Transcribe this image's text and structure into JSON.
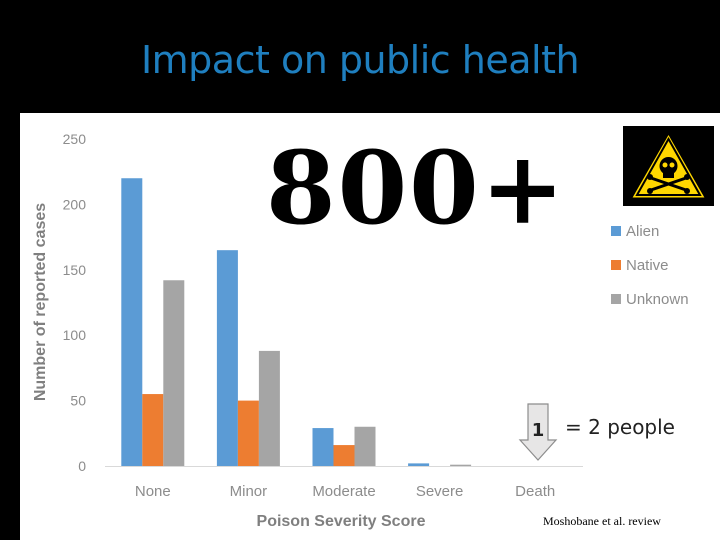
{
  "title": "Impact on public health",
  "headline_number": "800+",
  "icon": "skull-crossbones-warning-icon",
  "scale": {
    "marker": "1",
    "equals": "= 2 people"
  },
  "citation": "Moshobane et al. review",
  "colors": {
    "alien": "#5b9bd5",
    "native": "#ed7d31",
    "unknown": "#a5a5a5",
    "title": "#1f7fbf",
    "warning": "#ffd700"
  },
  "chart_data": {
    "type": "bar",
    "categories": [
      "None",
      "Minor",
      "Moderate",
      "Severe",
      "Death"
    ],
    "series": [
      {
        "name": "Alien",
        "values": [
          220,
          165,
          29,
          2,
          0
        ]
      },
      {
        "name": "Native",
        "values": [
          55,
          50,
          16,
          0,
          0
        ]
      },
      {
        "name": "Unknown",
        "values": [
          142,
          88,
          30,
          1,
          0
        ]
      }
    ],
    "xlabel": "Poison Severity Score",
    "ylabel": "Number of reported cases",
    "ylim": [
      0,
      250
    ],
    "yticks": [
      0,
      50,
      100,
      150,
      200,
      250
    ],
    "grid": false,
    "legend": "right"
  }
}
